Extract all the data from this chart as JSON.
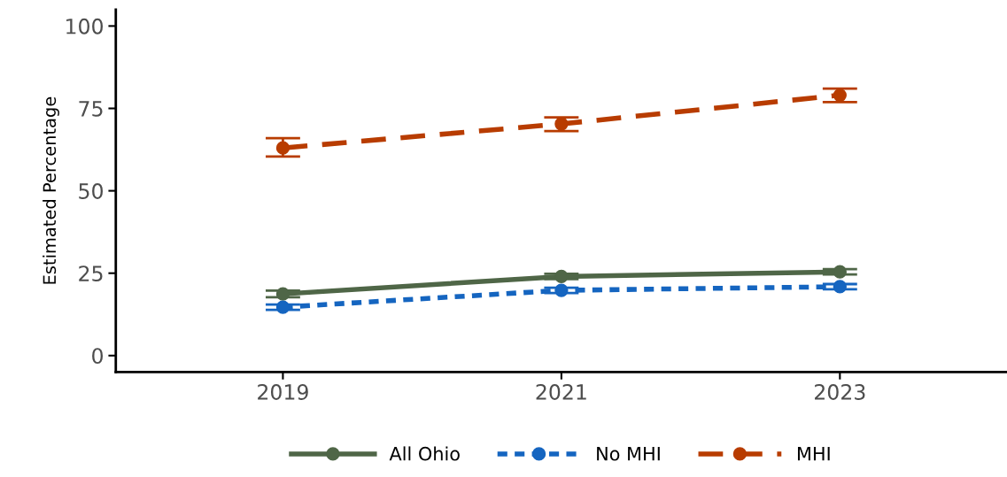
{
  "chart_data": {
    "type": "line",
    "ylabel": "Estimated Percentage",
    "x": [
      2019,
      2021,
      2023
    ],
    "xlim": [
      2017.8,
      2024.2
    ],
    "xticks": [
      2019,
      2021,
      2023
    ],
    "ylim": [
      -5,
      105
    ],
    "yticks": [
      0,
      25,
      50,
      75,
      100
    ],
    "grid": false,
    "legend": "bottom",
    "marker": "circle",
    "series": [
      {
        "name": "All Ohio",
        "color": "#4f6647",
        "line_style": "solid",
        "values": [
          18.7,
          24.0,
          25.4
        ],
        "errors": [
          1,
          0.8,
          0.8
        ]
      },
      {
        "name": "No MHI",
        "color": "#1565c0",
        "line_style": "dotted",
        "values": [
          14.7,
          19.8,
          20.9
        ],
        "errors": [
          0.8,
          0.8,
          0.8
        ]
      },
      {
        "name": "MHI",
        "color": "#b83c00",
        "line_style": "dashed",
        "values": [
          63.0,
          70.3,
          79.0
        ],
        "errors": [
          [
            60.4,
            66.0
          ],
          [
            68.1,
            72.3
          ],
          [
            76.9,
            81.0
          ]
        ]
      }
    ]
  }
}
